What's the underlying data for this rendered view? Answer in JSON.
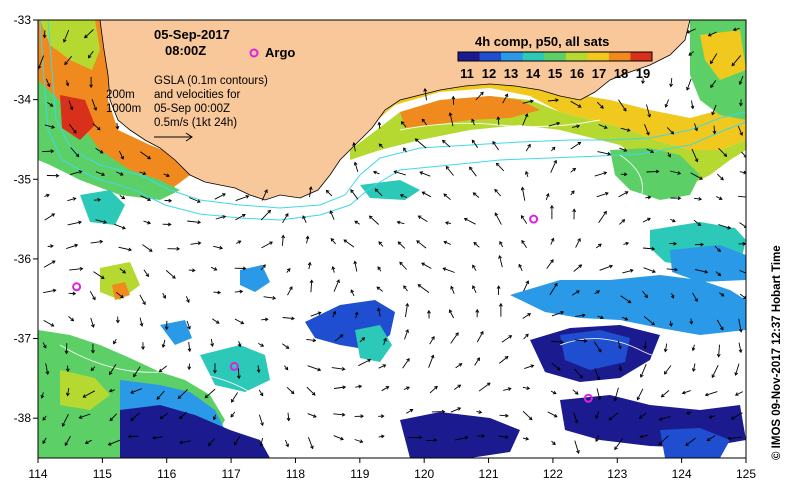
{
  "header": {
    "date": "05-Sep-2017",
    "time": "08:00Z",
    "argo_label": "Argo"
  },
  "colorbar": {
    "title": "4h comp, p50, all sats",
    "ticks": [
      "11",
      "12",
      "13",
      "14",
      "15",
      "16",
      "17",
      "18",
      "19"
    ]
  },
  "annotations": {
    "contour_200": "200m",
    "contour_1000": "1000m",
    "gsla_line1": "GSLA (0.1m contours)",
    "gsla_line2": "and velocities for",
    "gsla_line3": "05-Sep 00:00Z",
    "gsla_line4": "0.5m/s (1kt 24h)"
  },
  "side_label": "© IMOS 09-Nov-2017 12:37 Hobart Time",
  "axes": {
    "lon_ticks": [
      "114",
      "115",
      "116",
      "117",
      "118",
      "119",
      "120",
      "121",
      "122",
      "123",
      "124",
      "125"
    ],
    "lat_ticks": [
      "-33",
      "-34",
      "-35",
      "-36",
      "-37",
      "-38"
    ]
  },
  "colors": {
    "land": "#f8c79a",
    "isobath": "#40d8e8",
    "argo": "#e020e0",
    "sst_scale": [
      "#1b1b8f",
      "#1f4fd0",
      "#2a9ae8",
      "#2cc8b8",
      "#5cd066",
      "#b5d930",
      "#f0c81e",
      "#f08a1e",
      "#d8301a"
    ]
  },
  "argo_floats": [
    {
      "lon": 114.6,
      "lat": -36.35
    },
    {
      "lon": 117.05,
      "lat": -37.35
    },
    {
      "lon": 121.7,
      "lat": -35.5
    },
    {
      "lon": 122.55,
      "lat": -37.75
    }
  ]
}
